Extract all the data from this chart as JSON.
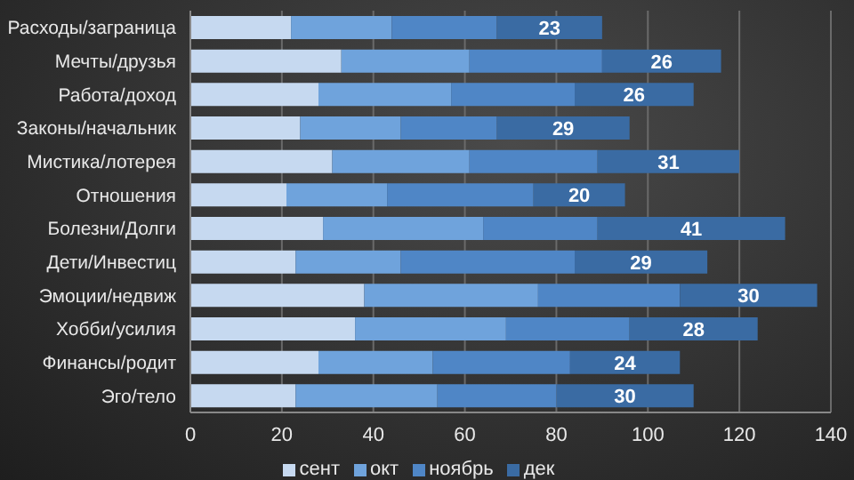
{
  "chart_data": {
    "type": "bar",
    "orientation": "horizontal",
    "stacked": true,
    "categories": [
      "Расходы/заграница",
      "Мечты/друзья",
      "Работа/доход",
      "Законы/начальник",
      "Мистика/лотерея",
      "Отношения",
      "Болезни/Долги",
      "Дети/Инвестиц",
      "Эмоции/недвиж",
      "Хобби/усилия",
      "Финансы/родит",
      "Эго/тело"
    ],
    "series": [
      {
        "name": "сент",
        "color": "#c6d9f0",
        "values": [
          22,
          33,
          28,
          24,
          31,
          21,
          29,
          23,
          38,
          36,
          28,
          23
        ]
      },
      {
        "name": "окт",
        "color": "#6fa3dc",
        "values": [
          22,
          28,
          29,
          22,
          30,
          22,
          35,
          23,
          38,
          33,
          25,
          31
        ]
      },
      {
        "name": "ноябрь",
        "color": "#4f86c6",
        "values": [
          23,
          29,
          27,
          21,
          28,
          32,
          25,
          38,
          31,
          27,
          30,
          26
        ]
      },
      {
        "name": "дек",
        "color": "#3a6ba3",
        "values": [
          23,
          26,
          26,
          29,
          31,
          20,
          41,
          29,
          30,
          28,
          24,
          30
        ],
        "value_labels": [
          "23",
          "26",
          "26",
          "29",
          "31",
          "20",
          "41",
          "29",
          "30",
          "28",
          "24",
          "30"
        ]
      }
    ],
    "xlim": [
      0,
      140
    ],
    "xticks": [
      0,
      20,
      40,
      60,
      80,
      100,
      120,
      140
    ],
    "grid": "x",
    "legend": "bottom"
  }
}
